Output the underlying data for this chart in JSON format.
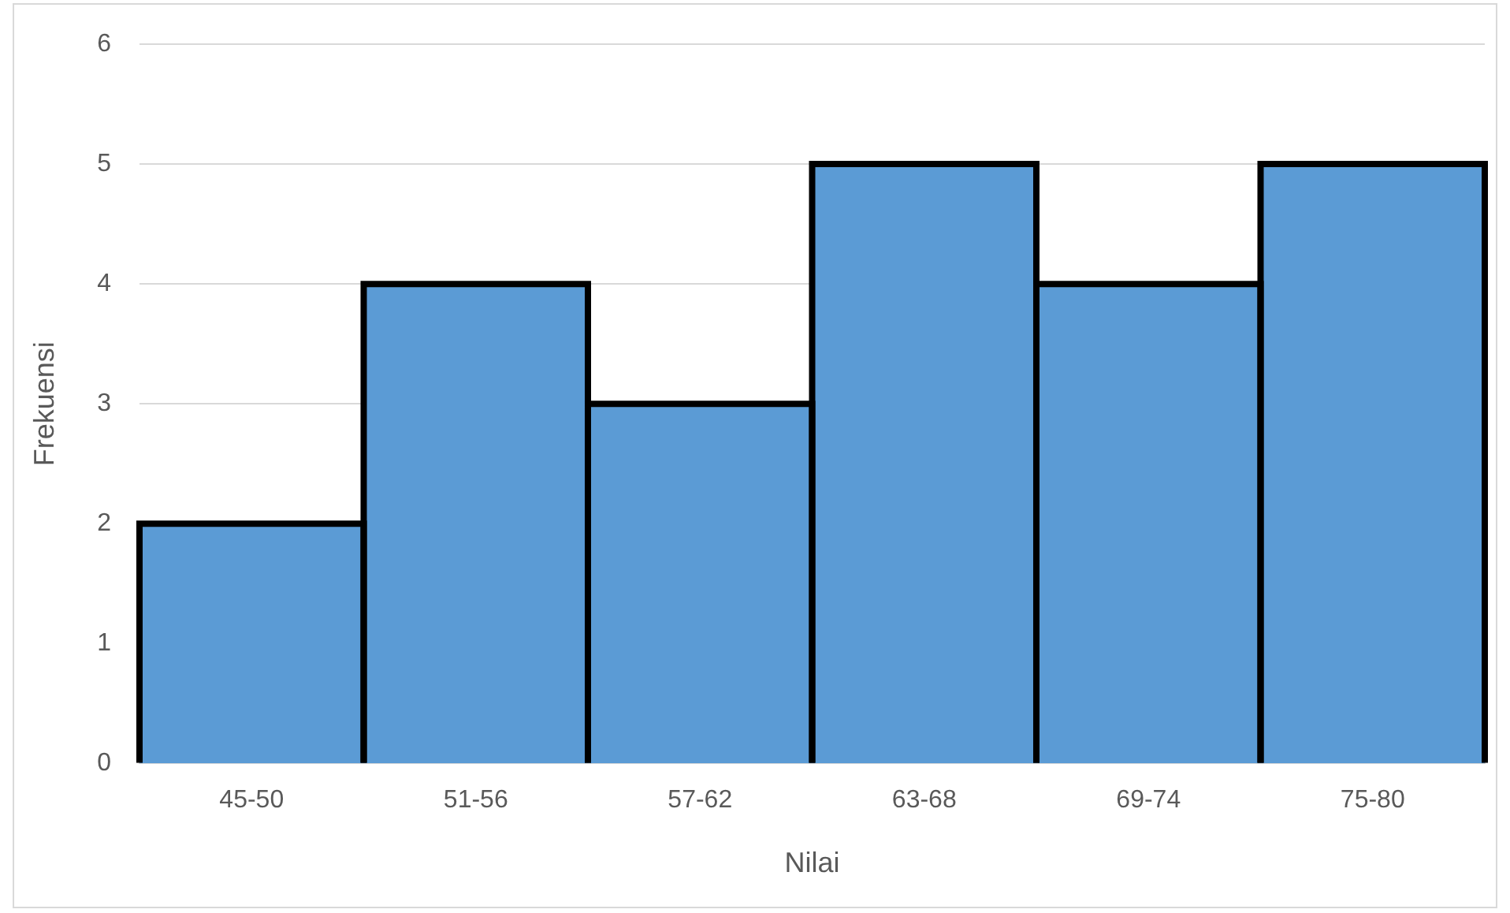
{
  "chart_data": {
    "type": "bar",
    "xlabel": "Nilai",
    "ylabel": "Frekuensi",
    "categories": [
      "45-50",
      "51-56",
      "57-62",
      "63-68",
      "69-74",
      "75-80"
    ],
    "values": [
      2,
      4,
      3,
      5,
      4,
      5
    ],
    "color": "#5b9bd5",
    "ylim": [
      0,
      6
    ],
    "yticks": [
      0,
      1,
      2,
      3,
      4,
      5,
      6
    ],
    "grid": "y",
    "legend": false
  }
}
